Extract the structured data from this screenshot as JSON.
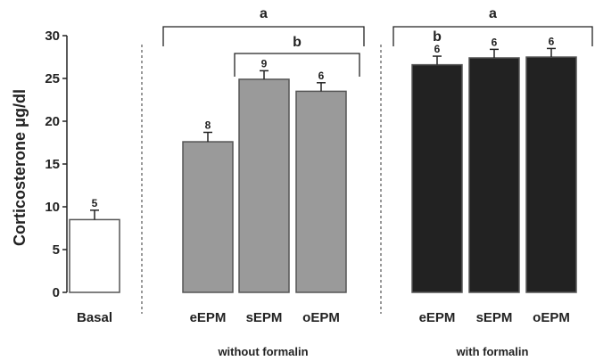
{
  "chart_data": {
    "type": "bar",
    "ylabel": "Corticosterone μg/dl",
    "ylim": [
      0,
      30
    ],
    "yticks": [
      0,
      5,
      10,
      15,
      20,
      25,
      30
    ],
    "grid": false,
    "categories": [
      "Basal",
      "eEPM",
      "sEPM",
      "oEPM",
      "eEPM",
      "sEPM",
      "oEPM"
    ],
    "groups": [
      {
        "label": "",
        "categories": [
          "Basal"
        ]
      },
      {
        "label": "without formalin",
        "categories": [
          "eEPM",
          "sEPM",
          "oEPM"
        ]
      },
      {
        "label": "with formalin",
        "categories": [
          "eEPM",
          "sEPM",
          "oEPM"
        ]
      }
    ],
    "values": [
      8.5,
      17.6,
      24.9,
      23.5,
      26.6,
      27.4,
      27.5
    ],
    "errors": [
      1.1,
      1.1,
      1.0,
      1.0,
      1.0,
      1.0,
      1.0
    ],
    "n_labels": [
      "5",
      "8",
      "9",
      "6",
      "6",
      "6",
      "6"
    ],
    "bar_colors": [
      "#ffffff",
      "#9a9a9a",
      "#9a9a9a",
      "#9a9a9a",
      "#222222",
      "#222222",
      "#222222"
    ],
    "significance": [
      {
        "label": "a",
        "from": 1,
        "to": 3
      },
      {
        "label": "b",
        "from": 2,
        "to": 3
      },
      {
        "label": "a",
        "from": 4,
        "to": 6
      },
      {
        "label": "b",
        "over": 4
      }
    ]
  }
}
